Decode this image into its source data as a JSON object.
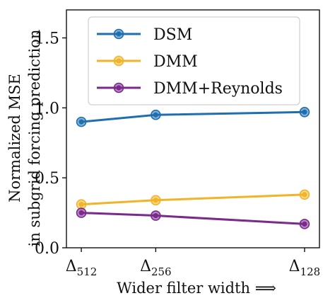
{
  "chart_data": {
    "type": "line",
    "xlabel": "Wider filter width ⟹",
    "ylabel_line1": "Normalized MSE",
    "ylabel_line2": "in subgrid forcing prediction",
    "x_ticks": [
      {
        "base": "Δ",
        "sub": "512",
        "x": 0
      },
      {
        "base": "Δ",
        "sub": "256",
        "x": 1
      },
      {
        "base": "Δ",
        "sub": "128",
        "x": 3
      }
    ],
    "y_ticks": [
      "0.0",
      "0.5",
      "1.0",
      "1.5"
    ],
    "y_tick_values": [
      0.0,
      0.5,
      1.0,
      1.5
    ],
    "ylim": [
      0,
      1.7
    ],
    "xlim": [
      -0.2,
      3.2
    ],
    "legend_position": "top-right",
    "series": [
      {
        "name": "DSM",
        "color": "#1f6fb0",
        "x": [
          0,
          1,
          3
        ],
        "values": [
          0.9,
          0.95,
          0.97
        ]
      },
      {
        "name": "DMM",
        "color": "#f0b429",
        "x": [
          0,
          1,
          3
        ],
        "values": [
          0.31,
          0.34,
          0.38
        ]
      },
      {
        "name": "DMM+Reynolds",
        "color": "#7a2a8c",
        "x": [
          0,
          1,
          3
        ],
        "values": [
          0.25,
          0.23,
          0.17
        ]
      }
    ]
  }
}
